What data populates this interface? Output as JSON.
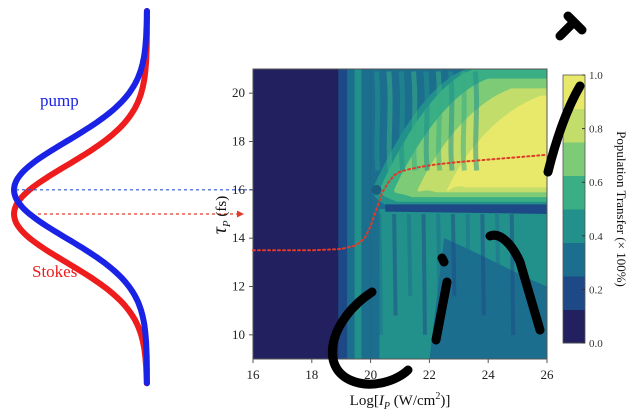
{
  "chart_data": {
    "type": "heatmap",
    "title": "",
    "xlabel": "Log[I_P (W/cm^2)]",
    "xlabel_parts": {
      "prefix": "Log[",
      "sym": "I",
      "sub": "P",
      "mid": " (W/cm",
      "sup": "2",
      "suffix": ")]"
    },
    "ylabel": "τ_P (fs)",
    "ylabel_parts": {
      "sym": "τ",
      "sub": "P",
      "suffix": " (fs)"
    },
    "xlim": [
      16,
      26
    ],
    "ylim": [
      9,
      21
    ],
    "x_ticks": [
      16,
      18,
      20,
      22,
      24,
      26
    ],
    "y_ticks": [
      10,
      12,
      14,
      16,
      18,
      20
    ],
    "colorbar": {
      "label": "Population Transfer (× 100%)",
      "range": [
        0.0,
        1.0
      ],
      "ticks": [
        "0.0",
        "0.2",
        "0.4",
        "0.6",
        "0.8",
        "1.0"
      ],
      "colors": [
        "#23205f",
        "#1d4a86",
        "#1b6e8e",
        "#22918c",
        "#3aae84",
        "#7dcb77",
        "#c2dd6a",
        "#e8e96a"
      ]
    },
    "optimal_curve": {
      "color": "#e03a2a",
      "style": "dotted",
      "x": [
        16.0,
        18.0,
        19.0,
        19.5,
        19.8,
        20.0,
        20.2,
        20.4,
        20.6,
        20.8,
        21.0,
        21.3,
        21.7,
        22.2,
        23.0,
        24.0,
        25.0,
        26.0
      ],
      "y": [
        13.5,
        13.5,
        13.55,
        13.7,
        14.0,
        14.5,
        15.2,
        15.9,
        16.3,
        16.6,
        16.75,
        16.85,
        16.95,
        17.05,
        17.15,
        17.25,
        17.35,
        17.45
      ]
    },
    "marker": {
      "x": 20.2,
      "y": 16.0
    }
  },
  "pulses": {
    "pump": {
      "label": "pump",
      "color": "#1a22e6",
      "center_tau": 16.0
    },
    "stokes": {
      "label": "Stokes",
      "color": "#ee1c1c",
      "center_tau": 15.0
    }
  },
  "guides": {
    "pump_line_color": "#2f55d4",
    "stokes_line_color": "#e33b2b"
  }
}
